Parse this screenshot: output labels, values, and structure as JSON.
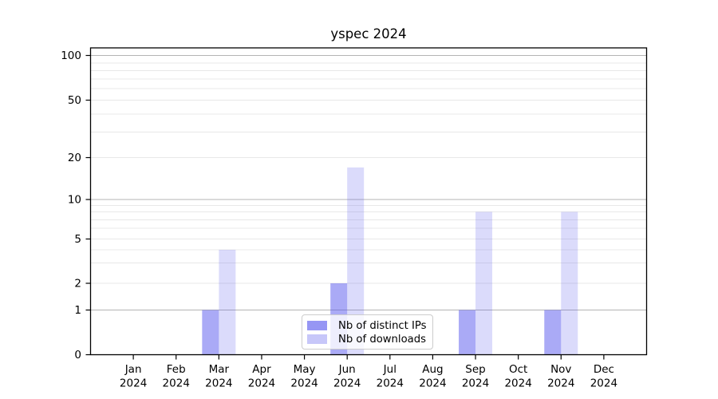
{
  "figure": {
    "title": "yspec 2024",
    "background": "#ffffff"
  },
  "chart_data": {
    "type": "bar",
    "title": "yspec 2024",
    "categories": [
      "Jan 2024",
      "Feb 2024",
      "Mar 2024",
      "Apr 2024",
      "May 2024",
      "Jun 2024",
      "Jul 2024",
      "Aug 2024",
      "Sep 2024",
      "Oct 2024",
      "Nov 2024",
      "Dec 2024"
    ],
    "x": {
      "months": [
        "Jan",
        "Feb",
        "Mar",
        "Apr",
        "May",
        "Jun",
        "Jul",
        "Aug",
        "Sep",
        "Oct",
        "Nov",
        "Dec"
      ],
      "year": "2024"
    },
    "series": [
      {
        "name": "Nb of distinct IPs",
        "base_color": "#5555ee",
        "opacity": 0.5,
        "rendered_color": "#aaaaf6",
        "values": [
          0,
          0,
          1,
          0,
          0,
          2,
          0,
          0,
          1,
          0,
          1,
          0
        ]
      },
      {
        "name": "Nb of downloads",
        "base_color": "#5555ee",
        "opacity": 0.21,
        "rendered_color": "#dcdcfa",
        "values": [
          0,
          0,
          4,
          0,
          0,
          17,
          0,
          0,
          8,
          0,
          8,
          0
        ]
      }
    ],
    "y_axis": {
      "scale": "symlog-like",
      "tick_labels": [
        "0",
        "1",
        "2",
        "5",
        "10",
        "20",
        "50",
        "100"
      ],
      "tick_values": [
        0,
        1,
        2,
        5,
        10,
        20,
        50,
        100
      ],
      "major_gridlines": [
        1,
        10,
        100
      ],
      "minor_gridlines": [
        2,
        3,
        4,
        5,
        6,
        7,
        8,
        9,
        20,
        30,
        40,
        50,
        60,
        70,
        80,
        90
      ],
      "ylim": [
        0,
        113
      ]
    },
    "grid": true,
    "legend_position": "lower center",
    "legend_entries": [
      "Nb of distinct IPs",
      "Nb of downloads"
    ]
  },
  "colors": {
    "major_grid": "#b4b4b4",
    "minor_grid": "#e8e8e8",
    "axis": "#000000",
    "text": "#000000",
    "legend_border": "#cccccc"
  }
}
